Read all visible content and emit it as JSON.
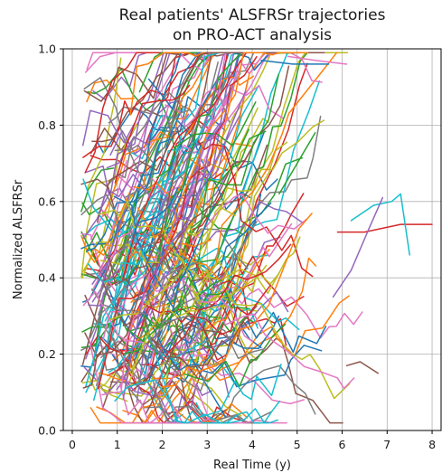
{
  "chart_data": {
    "type": "line",
    "title_line1": "Real patients' ALSFRSr trajectories",
    "title_line2": "on PRO-ACT analysis",
    "xlabel": "Real Time (y)",
    "ylabel": "Normalized ALSFRSr",
    "xlim": [
      -0.2,
      8.2
    ],
    "ylim": [
      0.0,
      1.0
    ],
    "xticks": [
      "0",
      "1",
      "2",
      "3",
      "4",
      "5",
      "6",
      "7",
      "8"
    ],
    "yticks": [
      "0.0",
      "0.2",
      "0.4",
      "0.6",
      "0.8",
      "1.0"
    ],
    "grid": true,
    "palette": [
      "#1f77b4",
      "#ff7f0e",
      "#2ca02c",
      "#d62728",
      "#9467bd",
      "#8c564b",
      "#e377c2",
      "#7f7f7f",
      "#bcbd22",
      "#17becf"
    ],
    "trajectory_count_drawn": 260,
    "highlighted_series": [
      {
        "color": "#e377c2",
        "x": [
          4.8,
          5.4,
          6.1
        ],
        "y": [
          0.98,
          0.97,
          0.96
        ]
      },
      {
        "color": "#1f77b4",
        "x": [
          4.2,
          4.9,
          5.7
        ],
        "y": [
          0.97,
          0.96,
          0.96
        ]
      },
      {
        "color": "#d62728",
        "x": [
          5.9,
          6.5,
          7.3,
          8.0
        ],
        "y": [
          0.52,
          0.52,
          0.54,
          0.54
        ]
      },
      {
        "color": "#17becf",
        "x": [
          6.2,
          6.7,
          7.1,
          7.3,
          7.5
        ],
        "y": [
          0.55,
          0.59,
          0.6,
          0.62,
          0.46
        ]
      },
      {
        "color": "#8c564b",
        "x": [
          6.1,
          6.4,
          6.8
        ],
        "y": [
          0.17,
          0.18,
          0.15
        ]
      },
      {
        "color": "#9467bd",
        "x": [
          5.8,
          6.2,
          6.6,
          6.9
        ],
        "y": [
          0.35,
          0.42,
          0.53,
          0.61
        ]
      },
      {
        "color": "#2ca02c",
        "x": [
          4.6,
          5.0,
          5.4
        ],
        "y": [
          0.62,
          0.7,
          0.78
        ]
      }
    ]
  }
}
